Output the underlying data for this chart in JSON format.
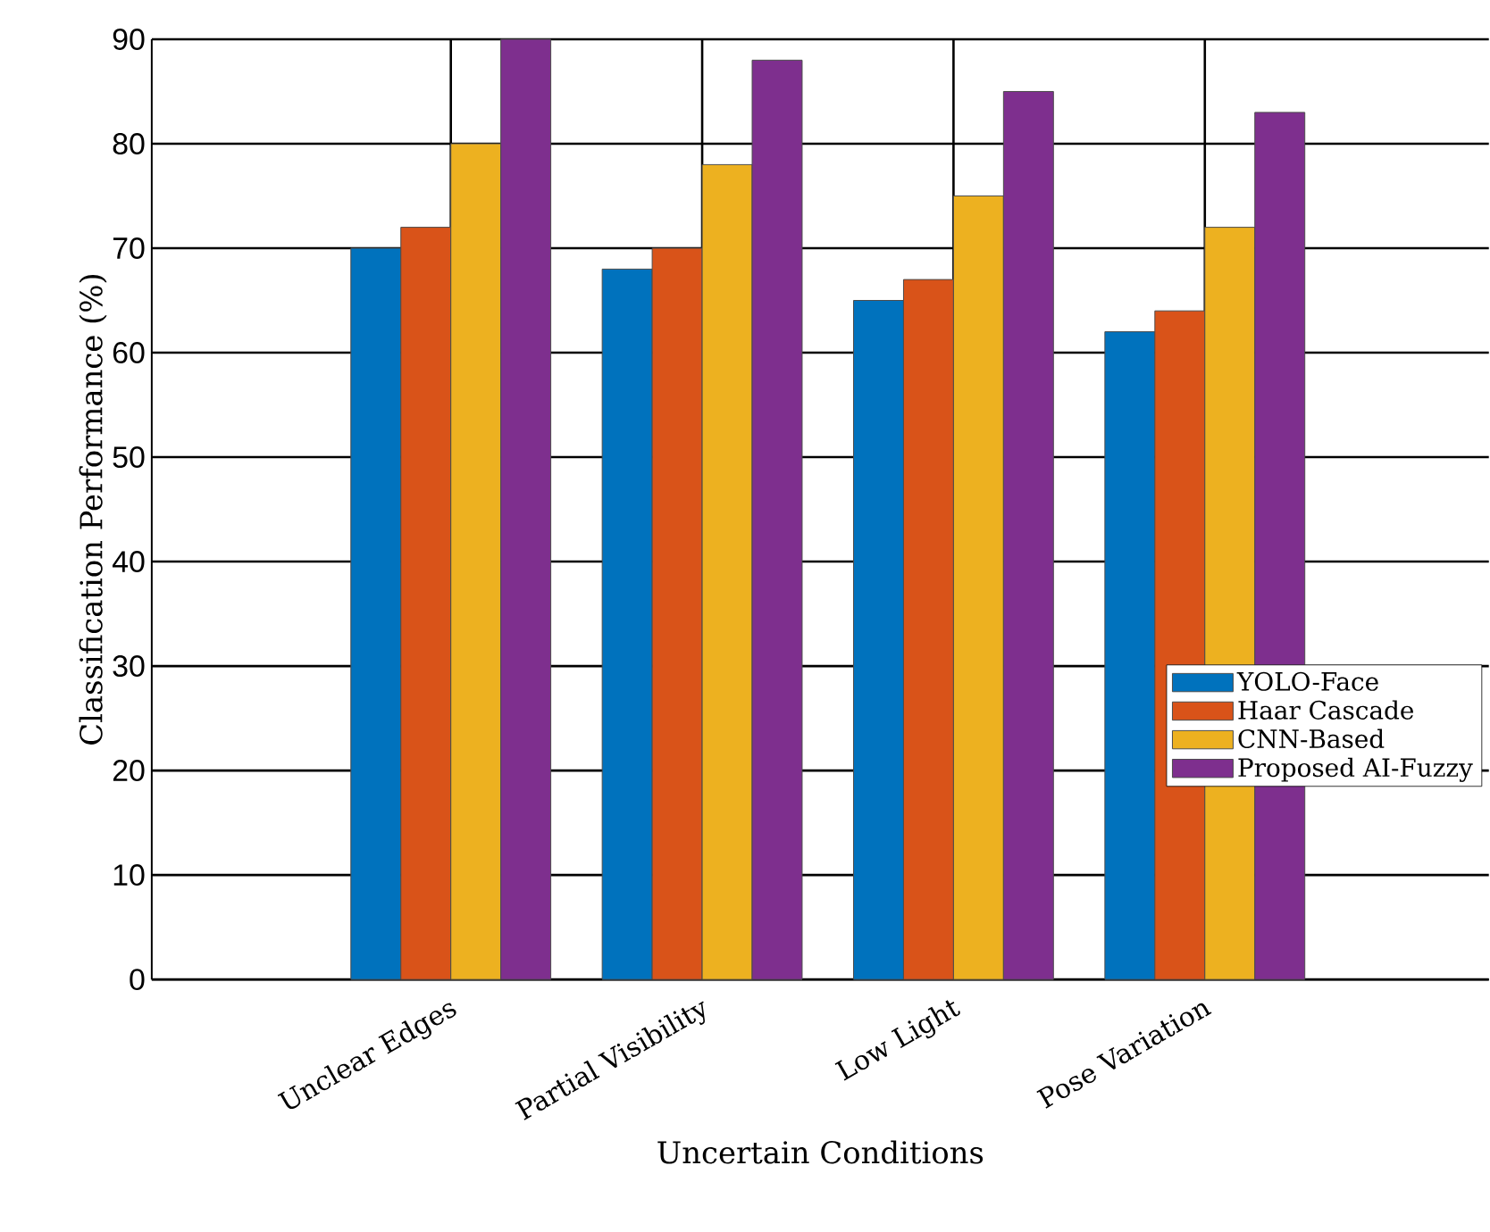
{
  "chart_data": {
    "type": "bar",
    "xlabel": "Uncertain Conditions",
    "ylabel": "Classification Performance (%)",
    "categories": [
      "Unclear Edges",
      "Partial Visibility",
      "Low Light",
      "Pose Variation"
    ],
    "series": [
      {
        "name": "YOLO-Face",
        "color": "#0072bd",
        "values": [
          70,
          68,
          65,
          62
        ]
      },
      {
        "name": "Haar Cascade",
        "color": "#d95319",
        "values": [
          72,
          70,
          67,
          64
        ]
      },
      {
        "name": "CNN-Based",
        "color": "#edb120",
        "values": [
          80,
          78,
          75,
          72
        ]
      },
      {
        "name": "Proposed AI-Fuzzy",
        "color": "#7e2f8e",
        "values": [
          90,
          88,
          85,
          83
        ]
      }
    ],
    "ylim": [
      0,
      90
    ],
    "yticks": [
      0,
      10,
      20,
      30,
      40,
      50,
      60,
      70,
      80,
      90
    ],
    "grid": true,
    "legend": "right"
  }
}
